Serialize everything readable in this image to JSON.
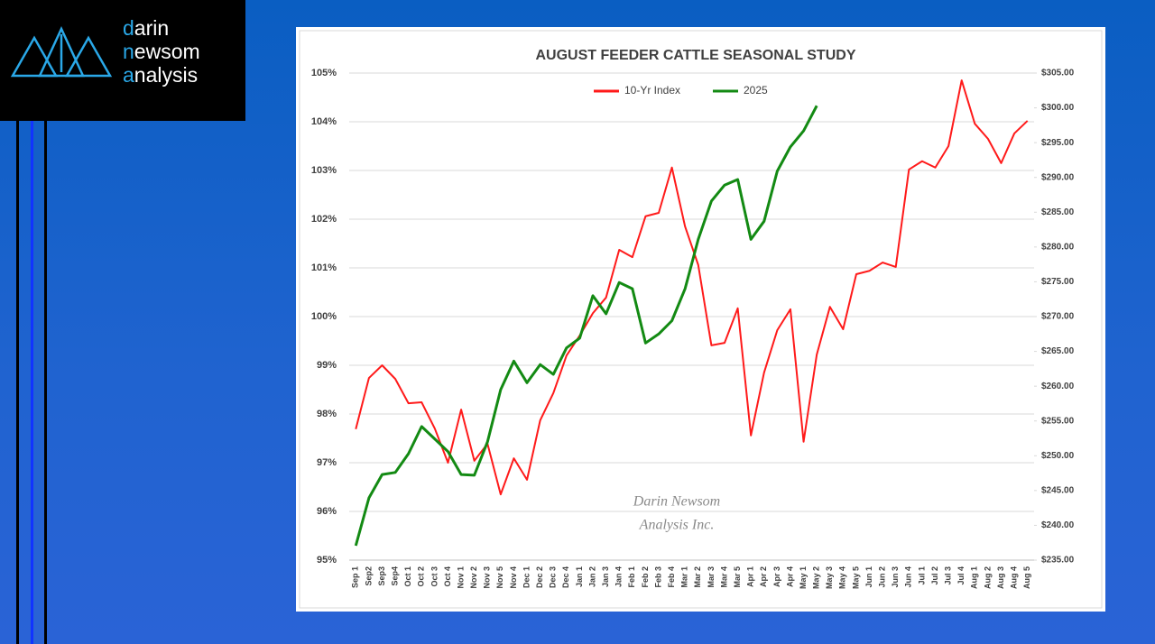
{
  "logo": [
    "darin",
    "newsom",
    "analysis"
  ],
  "chart_data": {
    "type": "line",
    "title": "AUGUST FEEDER CATTLE SEASONAL STUDY",
    "annotations": [
      "Darin Newsom",
      "Analysis Inc."
    ],
    "legend": "top",
    "grid": true,
    "categories": [
      "Sep 1",
      "Sep2",
      "Sep3",
      "Sep4",
      "Oct 1",
      "Oct 2",
      "Oct 3",
      "Oct 4",
      "Nov 1",
      "Nov 2",
      "Nov 3",
      "Nov 5",
      "Nov 4",
      "Dec 1",
      "Dec 2",
      "Dec 3",
      "Dec 4",
      "Jan 1",
      "Jan 2",
      "Jan 3",
      "Jan 4",
      "Feb 1",
      "Feb 2",
      "Feb 3",
      "Feb 4",
      "Mar 1",
      "Mar 2",
      "Mar 3",
      "Mar 4",
      "Mar 5",
      "Apr 1",
      "Apr 2",
      "Apr 3",
      "Apr 4",
      "May 1",
      "May 2",
      "May 3",
      "May 4",
      "May 5",
      "Jun 1",
      "Jun 2",
      "Jun 3",
      "Jun 4",
      "Jul 1",
      "Jul 2",
      "Jul 3",
      "Jul 4",
      "Aug 1",
      "Aug 2",
      "Aug 3",
      "Aug 4",
      "Aug 5"
    ],
    "series": [
      {
        "name": "10-Yr Index",
        "color": "#ff1a1a",
        "axis": "y",
        "values": [
          97.69,
          98.74,
          99.0,
          98.72,
          98.22,
          98.24,
          97.7,
          97.0,
          98.09,
          97.04,
          97.39,
          96.35,
          97.09,
          96.65,
          97.87,
          98.43,
          99.2,
          99.61,
          100.07,
          100.39,
          101.37,
          101.22,
          102.06,
          102.13,
          103.06,
          101.85,
          101.06,
          99.41,
          99.46,
          100.17,
          97.56,
          98.85,
          99.72,
          100.15,
          97.43,
          99.22,
          100.2,
          99.74,
          100.87,
          100.94,
          101.11,
          101.02,
          103.02,
          103.19,
          103.06,
          103.5,
          104.85,
          103.96,
          103.65,
          103.15,
          103.76,
          104.02
        ]
      },
      {
        "name": "2025",
        "color": "#138a13",
        "axis": "y2",
        "values": [
          237.07,
          243.94,
          247.3,
          247.6,
          250.3,
          254.2,
          252.4,
          250.6,
          247.3,
          247.2,
          252.0,
          259.5,
          263.6,
          260.5,
          263.1,
          261.7,
          265.5,
          266.9,
          273.0,
          270.4,
          274.9,
          274.0,
          266.2,
          267.5,
          269.4,
          274.0,
          281.1,
          286.6,
          288.9,
          289.7,
          281.1,
          283.7,
          290.9,
          294.4,
          296.7,
          300.3,
          null,
          null,
          null,
          null,
          null,
          null,
          null,
          null,
          null,
          null,
          null,
          null,
          null,
          null,
          null,
          null
        ]
      }
    ],
    "ylim": [
      95,
      105
    ],
    "yticks": [
      {
        "value": 95,
        "label": "95%"
      },
      {
        "value": 96,
        "label": "96%"
      },
      {
        "value": 97,
        "label": "97%"
      },
      {
        "value": 98,
        "label": "98%"
      },
      {
        "value": 99,
        "label": "99%"
      },
      {
        "value": 100,
        "label": "100%"
      },
      {
        "value": 101,
        "label": "101%"
      },
      {
        "value": 102,
        "label": "102%"
      },
      {
        "value": 103,
        "label": "103%"
      },
      {
        "value": 104,
        "label": "104%"
      },
      {
        "value": 105,
        "label": "105%"
      }
    ],
    "y2lim": [
      235,
      305
    ],
    "y2ticks": [
      {
        "value": 235,
        "label": "$235.00"
      },
      {
        "value": 240,
        "label": "$240.00"
      },
      {
        "value": 245,
        "label": "$245.00"
      },
      {
        "value": 250,
        "label": "$250.00"
      },
      {
        "value": 255,
        "label": "$255.00"
      },
      {
        "value": 260,
        "label": "$260.00"
      },
      {
        "value": 265,
        "label": "$265.00"
      },
      {
        "value": 270,
        "label": "$270.00"
      },
      {
        "value": 275,
        "label": "$275.00"
      },
      {
        "value": 280,
        "label": "$280.00"
      },
      {
        "value": 285,
        "label": "$285.00"
      },
      {
        "value": 290,
        "label": "$290.00"
      },
      {
        "value": 295,
        "label": "$295.00"
      },
      {
        "value": 300,
        "label": "$300.00"
      },
      {
        "value": 305,
        "label": "$305.00"
      }
    ]
  }
}
